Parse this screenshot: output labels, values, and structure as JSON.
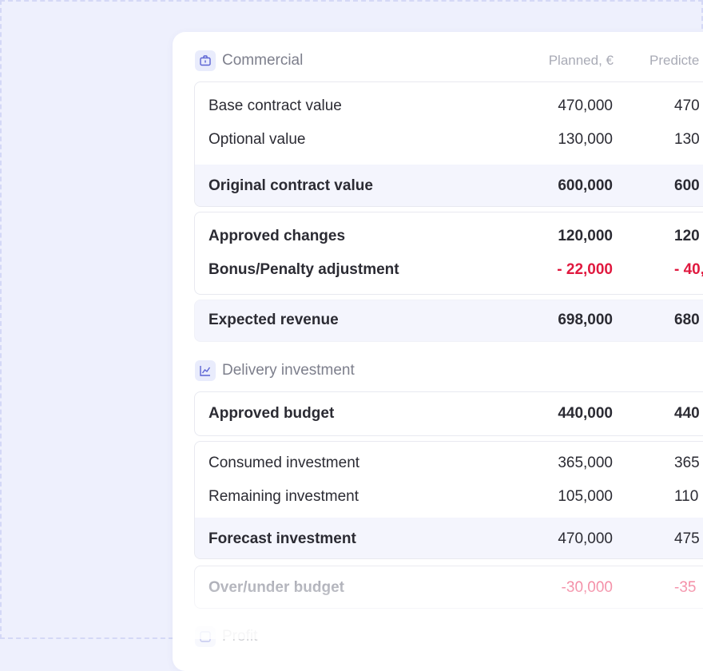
{
  "columns": {
    "planned": "Planned, €",
    "predicted": "Predicte"
  },
  "commercial": {
    "title": "Commercial",
    "icon": "briefcase-icon",
    "rows": [
      {
        "label": "Base contract value",
        "planned": "470,000",
        "predicted": "470"
      },
      {
        "label": "Optional value",
        "planned": "130,000",
        "predicted": "130"
      }
    ],
    "original": {
      "label": "Original contract value",
      "planned": "600,000",
      "predicted": "600"
    },
    "changes": [
      {
        "label": "Approved changes",
        "planned": "120,000",
        "predicted": "120"
      },
      {
        "label": "Bonus/Penalty adjustment",
        "planned": "- 22,000",
        "predicted": "- 40,"
      }
    ],
    "expected": {
      "label": "Expected revenue",
      "planned": "698,000",
      "predicted": "680"
    }
  },
  "delivery": {
    "title": "Delivery investment",
    "icon": "line-chart-icon",
    "approved": {
      "label": "Approved budget",
      "planned": "440,000",
      "predicted": "440"
    },
    "rows": [
      {
        "label": "Consumed investment",
        "planned": "365,000",
        "predicted": "365"
      },
      {
        "label": "Remaining investment",
        "planned": "105,000",
        "predicted": "110"
      }
    ],
    "forecast": {
      "label": "Forecast investment",
      "planned": "470,000",
      "predicted": "475"
    },
    "overunder": {
      "label": "Over/under budget",
      "planned": "-30,000",
      "predicted": "-35"
    }
  },
  "profit": {
    "title": "Profit",
    "icon": "profit-icon"
  },
  "colors": {
    "accent": "#5b63d3",
    "negative": "#e0193f",
    "background": "#eef0fd"
  }
}
